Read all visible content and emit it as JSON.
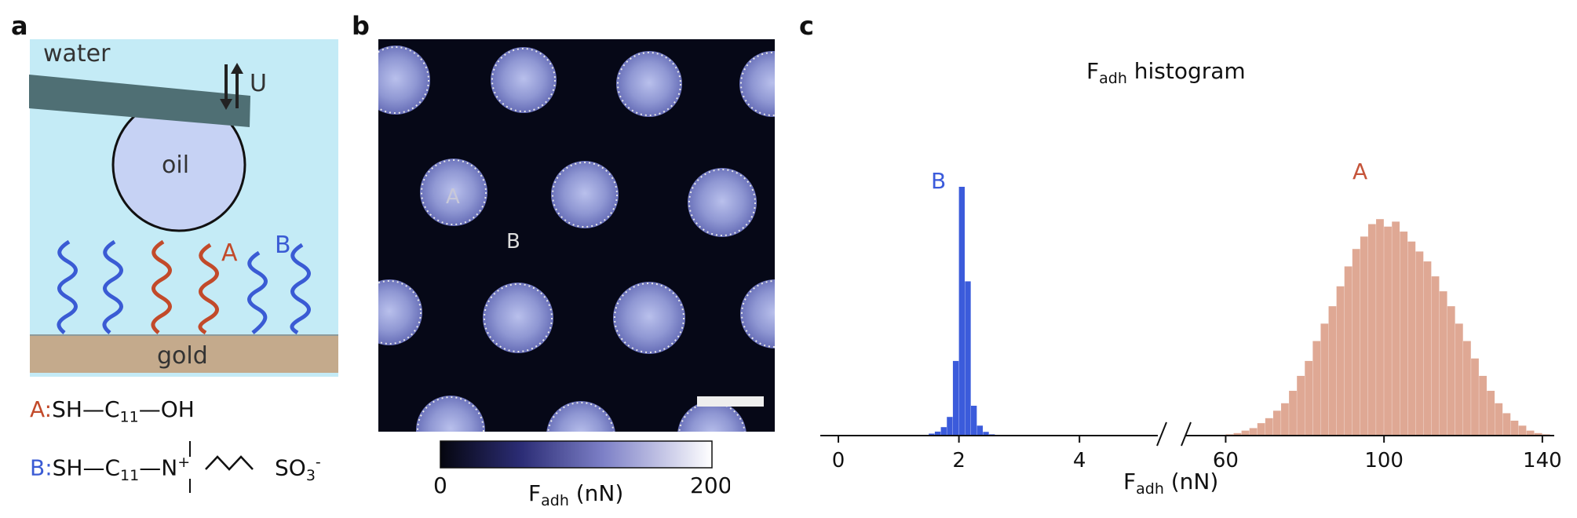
{
  "panels": {
    "a": "a",
    "b": "b",
    "c": "c"
  },
  "schematic": {
    "water_label": "water",
    "oil_label": "oil",
    "gold_label": "gold",
    "motion_label": "U",
    "chain_a_label": "A",
    "chain_b_label": "B",
    "formula_a": {
      "key": "A:",
      "text": "SH—C",
      "sub": "11",
      "text2": "—OH"
    },
    "formula_b": {
      "key": "B:",
      "text": "SH—C",
      "sub": "11",
      "text2": "—N",
      "charge": "+",
      "so3": "SO",
      "so3_sub": "3",
      "so3_sup": "-"
    },
    "colors": {
      "water": "#c4ebf6",
      "gold": "#c4aa8c",
      "oil": "#c6d2f4",
      "cantilever": "#4f6f74",
      "chain_a": "#c24a2a",
      "chain_b": "#3a5bd4"
    }
  },
  "afm_map": {
    "region_a_label": "A",
    "region_b_label": "B",
    "colorbar": {
      "min_label": "0",
      "max_label": "200",
      "title": "F",
      "title_sub": "adh",
      "title_unit": " (nN)"
    }
  },
  "chart_data": {
    "type": "bar",
    "title": "F",
    "title_sub": "adh",
    "title_suffix": " histogram",
    "xlabel": "F",
    "xlabel_sub": "adh",
    "xlabel_unit": " (nN)",
    "axis_break": true,
    "left_axis": {
      "xlim": [
        -0.3,
        5.3
      ],
      "ticks": [
        0,
        2,
        4
      ]
    },
    "right_axis": {
      "xlim": [
        50,
        143
      ],
      "ticks": [
        60,
        100,
        140
      ]
    },
    "series": [
      {
        "name": "B",
        "color": "#3b5bdb",
        "bin_width": 0.1,
        "bin_centers": [
          1.45,
          1.55,
          1.65,
          1.75,
          1.85,
          1.95,
          2.05,
          2.15,
          2.25,
          2.35,
          2.45,
          2.55
        ],
        "values": [
          0.3,
          0.8,
          1.6,
          3.4,
          7.5,
          30,
          100,
          62,
          12,
          4,
          1.5,
          0.5
        ]
      },
      {
        "name": "A",
        "color": "#dc9e88",
        "bin_width": 2,
        "bin_centers": [
          61,
          63,
          65,
          67,
          69,
          71,
          73,
          75,
          77,
          79,
          81,
          83,
          85,
          87,
          89,
          91,
          93,
          95,
          97,
          99,
          101,
          103,
          105,
          107,
          109,
          111,
          113,
          115,
          117,
          119,
          121,
          123,
          125,
          127,
          129,
          131,
          133,
          135,
          137,
          139,
          141
        ],
        "values": [
          0.5,
          1,
          2,
          3,
          5,
          7,
          10,
          13,
          18,
          24,
          30,
          38,
          45,
          52,
          60,
          68,
          75,
          80,
          85,
          87,
          84,
          86,
          82,
          78,
          74,
          70,
          64,
          58,
          52,
          45,
          38,
          31,
          24,
          18,
          13,
          9,
          6,
          4,
          2,
          1,
          0.5
        ]
      }
    ]
  }
}
